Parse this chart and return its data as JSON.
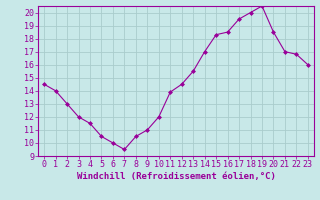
{
  "x": [
    0,
    1,
    2,
    3,
    4,
    5,
    6,
    7,
    8,
    9,
    10,
    11,
    12,
    13,
    14,
    15,
    16,
    17,
    18,
    19,
    20,
    21,
    22,
    23
  ],
  "y": [
    14.5,
    14.0,
    13.0,
    12.0,
    11.5,
    10.5,
    10.0,
    9.5,
    10.5,
    11.0,
    12.0,
    13.9,
    14.5,
    15.5,
    17.0,
    18.3,
    18.5,
    19.5,
    20.0,
    20.5,
    18.5,
    17.0,
    16.8,
    16.0
  ],
  "line_color": "#990099",
  "marker": "D",
  "marker_size": 2,
  "bg_color": "#c8e8e8",
  "grid_color": "#aacccc",
  "xlabel": "Windchill (Refroidissement éolien,°C)",
  "xlim": [
    -0.5,
    23.5
  ],
  "ylim": [
    9,
    20.5
  ],
  "yticks": [
    9,
    10,
    11,
    12,
    13,
    14,
    15,
    16,
    17,
    18,
    19,
    20
  ],
  "xticks": [
    0,
    1,
    2,
    3,
    4,
    5,
    6,
    7,
    8,
    9,
    10,
    11,
    12,
    13,
    14,
    15,
    16,
    17,
    18,
    19,
    20,
    21,
    22,
    23
  ],
  "xlabel_color": "#990099",
  "tick_color": "#990099",
  "label_fontsize": 6.5,
  "tick_fontsize": 6
}
